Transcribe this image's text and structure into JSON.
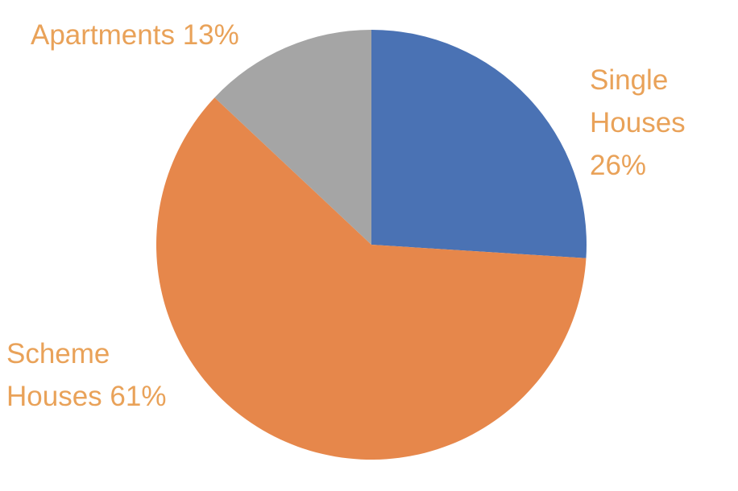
{
  "chart_data": {
    "type": "pie",
    "title": "",
    "categories": [
      "Single Houses",
      "Scheme Houses",
      "Apartments"
    ],
    "values": [
      26,
      61,
      13
    ],
    "unit": "%",
    "colors": [
      "#4A72B4",
      "#E6874B",
      "#A5A5A5"
    ],
    "label_color": "#E9A259",
    "labels": {
      "single": "Single\nHouses\n26%",
      "scheme": "Scheme\nHouses 61%",
      "apartments": "Apartments 13%"
    },
    "legend": "none",
    "start_angle": "12 o'clock",
    "direction": "clockwise"
  }
}
